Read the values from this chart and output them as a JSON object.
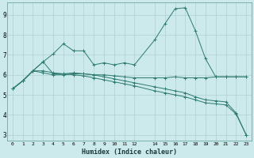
{
  "xlabel": "Humidex (Indice chaleur)",
  "bg_color": "#cce9ec",
  "grid_color": "#b0cfd4",
  "line_color": "#2d7b6f",
  "spine_color": "#5a9a90",
  "xlim": [
    -0.5,
    23.5
  ],
  "ylim": [
    2.7,
    9.6
  ],
  "xtick_vals": [
    0,
    1,
    2,
    3,
    4,
    5,
    6,
    7,
    8,
    9,
    10,
    11,
    12,
    14,
    15,
    16,
    17,
    18,
    19,
    20,
    21,
    22,
    23
  ],
  "ytick_vals": [
    3,
    4,
    5,
    6,
    7,
    8,
    9
  ],
  "lines": [
    {
      "x": [
        0,
        1,
        2,
        3,
        4,
        5,
        6,
        7,
        8,
        9,
        10,
        11,
        12,
        14,
        15,
        16,
        17,
        18,
        19,
        20,
        21,
        22,
        23
      ],
      "y": [
        5.3,
        5.7,
        6.2,
        6.65,
        7.05,
        7.55,
        7.2,
        7.2,
        6.5,
        6.6,
        6.5,
        6.6,
        6.5,
        7.75,
        8.55,
        9.3,
        9.35,
        8.2,
        6.8,
        5.9,
        5.9,
        5.9,
        5.9
      ]
    },
    {
      "x": [
        0,
        1,
        2,
        3,
        4,
        5,
        6,
        7,
        8,
        9,
        10,
        11,
        12,
        14,
        15,
        16,
        17,
        18,
        19,
        20,
        21,
        22,
        23
      ],
      "y": [
        5.3,
        5.7,
        6.2,
        6.65,
        6.05,
        6.05,
        6.1,
        6.05,
        6.0,
        5.9,
        5.8,
        5.7,
        5.6,
        5.4,
        5.3,
        5.2,
        5.1,
        4.9,
        4.75,
        4.7,
        4.65,
        4.1,
        3.0
      ]
    },
    {
      "x": [
        0,
        1,
        2,
        3,
        4,
        5,
        6,
        7,
        8,
        9,
        10,
        11,
        12,
        14,
        15,
        16,
        17,
        18,
        19,
        20,
        21,
        22,
        23
      ],
      "y": [
        5.3,
        5.7,
        6.2,
        6.1,
        6.0,
        6.0,
        6.05,
        6.05,
        6.0,
        6.0,
        5.95,
        5.9,
        5.85,
        5.85,
        5.85,
        5.9,
        5.85,
        5.85,
        5.85,
        5.9,
        5.9,
        5.9,
        5.9
      ]
    },
    {
      "x": [
        0,
        1,
        2,
        3,
        4,
        5,
        6,
        7,
        8,
        9,
        10,
        11,
        12,
        14,
        15,
        16,
        17,
        18,
        19,
        20,
        21,
        22,
        23
      ],
      "y": [
        5.3,
        5.7,
        6.2,
        6.2,
        6.1,
        6.05,
        6.0,
        5.95,
        5.85,
        5.75,
        5.65,
        5.55,
        5.45,
        5.2,
        5.1,
        5.0,
        4.9,
        4.75,
        4.6,
        4.55,
        4.5,
        4.05,
        3.0
      ]
    }
  ]
}
